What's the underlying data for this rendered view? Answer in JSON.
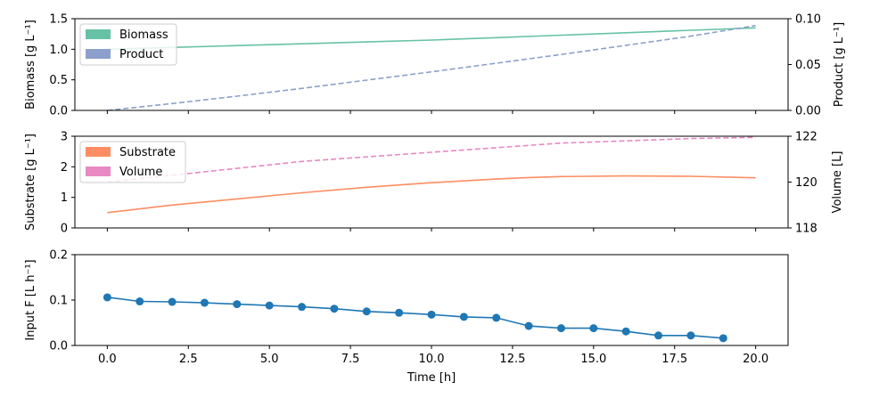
{
  "chart_data": [
    {
      "type": "line",
      "title": "",
      "xlabel": "",
      "xlim": [
        -1,
        21
      ],
      "ylabel": "Biomass [g L⁻¹]",
      "ylim": [
        0,
        1.5
      ],
      "yticks": [
        "0.0",
        "0.5",
        "1.0",
        "1.5"
      ],
      "ylabel_right": "Product [g L⁻¹]",
      "ylim_right": [
        0,
        0.1
      ],
      "yticks_right": [
        "0.00",
        "0.05",
        "0.10"
      ],
      "legend_placement": "top-left",
      "legend": [
        {
          "label": "Biomass",
          "color": "#66c2a5"
        },
        {
          "label": "Product",
          "color": "#8da0cb"
        }
      ],
      "series": [
        {
          "name": "Biomass",
          "axis": "left",
          "style": "solid",
          "color": "#66c2a5",
          "x": [
            0,
            2,
            4,
            6,
            8,
            10,
            12,
            14,
            16,
            18,
            20
          ],
          "y": [
            1.0,
            1.03,
            1.06,
            1.09,
            1.12,
            1.15,
            1.19,
            1.23,
            1.27,
            1.31,
            1.35
          ]
        },
        {
          "name": "Product",
          "axis": "right",
          "style": "dashed",
          "color": "#8da0cb",
          "x": [
            0,
            2,
            4,
            6,
            8,
            10,
            12,
            14,
            16,
            18,
            20
          ],
          "y": [
            0.0,
            0.0075,
            0.0155,
            0.024,
            0.033,
            0.042,
            0.0515,
            0.061,
            0.071,
            0.081,
            0.0925
          ]
        }
      ]
    },
    {
      "type": "line",
      "title": "",
      "xlabel": "",
      "xlim": [
        -1,
        21
      ],
      "ylabel": "Substrate [g L⁻¹]",
      "ylim": [
        0,
        3
      ],
      "yticks": [
        "0",
        "1",
        "2",
        "3"
      ],
      "ylabel_right": "Volume [L]",
      "ylim_right": [
        118,
        122
      ],
      "yticks_right": [
        "118",
        "120",
        "122"
      ],
      "legend_placement": "top-left",
      "legend": [
        {
          "label": "Substrate",
          "color": "#fc8d62"
        },
        {
          "label": "Volume",
          "color": "#e78ac3"
        }
      ],
      "series": [
        {
          "name": "Substrate",
          "axis": "left",
          "style": "solid",
          "color": "#fc8d62",
          "x": [
            0,
            2,
            4,
            6,
            8,
            10,
            12,
            13,
            14,
            16,
            18,
            20
          ],
          "y": [
            0.5,
            0.75,
            0.95,
            1.15,
            1.33,
            1.48,
            1.6,
            1.65,
            1.68,
            1.7,
            1.69,
            1.64
          ]
        },
        {
          "name": "Volume",
          "axis": "right",
          "style": "dashed",
          "color": "#e78ac3",
          "x": [
            0,
            2,
            4,
            6,
            8,
            10,
            12,
            14,
            16,
            18,
            20
          ],
          "y": [
            120.0,
            120.3,
            120.6,
            120.9,
            121.1,
            121.3,
            121.5,
            121.7,
            121.8,
            121.9,
            121.95
          ]
        }
      ]
    },
    {
      "type": "line",
      "title": "",
      "xlabel": "Time [h]",
      "xlim": [
        -1,
        21
      ],
      "xticks": [
        "0.0",
        "2.5",
        "5.0",
        "7.5",
        "10.0",
        "12.5",
        "15.0",
        "17.5",
        "20.0"
      ],
      "ylabel": "Input F [L h⁻¹]",
      "ylim": [
        0,
        0.2
      ],
      "yticks": [
        "0.0",
        "0.1",
        "0.2"
      ],
      "series": [
        {
          "name": "Input F",
          "axis": "left",
          "style": "solid-markers",
          "color": "#1f77b4",
          "x": [
            0,
            1,
            2,
            3,
            4,
            5,
            6,
            7,
            8,
            9,
            10,
            11,
            12,
            13,
            14,
            15,
            16,
            17,
            18,
            19
          ],
          "y": [
            0.106,
            0.097,
            0.096,
            0.094,
            0.091,
            0.088,
            0.085,
            0.081,
            0.075,
            0.072,
            0.068,
            0.063,
            0.061,
            0.043,
            0.038,
            0.038,
            0.031,
            0.022,
            0.022,
            0.016
          ]
        }
      ]
    }
  ]
}
